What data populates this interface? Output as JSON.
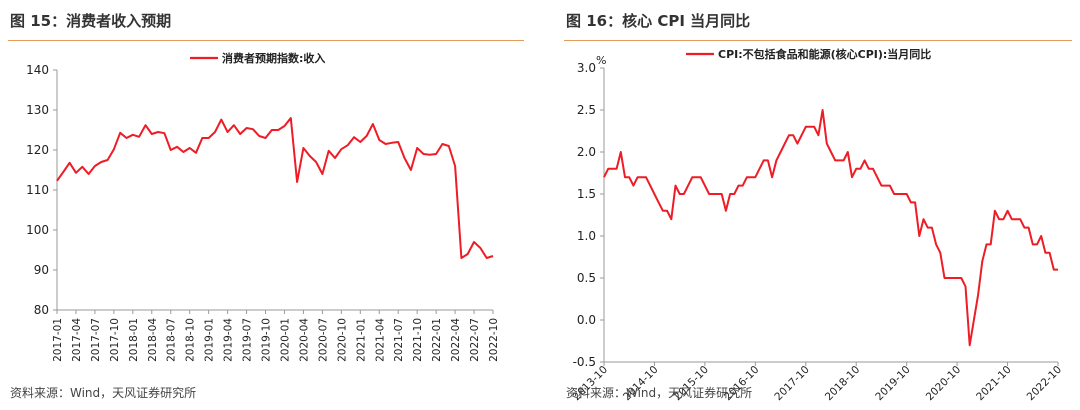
{
  "charts": [
    {
      "figure_title": "图 15：消费者收入预期",
      "source": "资料来源：Wind，天风证券研究所",
      "chart_data": {
        "type": "line",
        "title": "",
        "xlabel": "",
        "ylabel": "",
        "unit_label": "",
        "legend_position": "top-center",
        "grid": false,
        "ylim": [
          80,
          140
        ],
        "yticks": [
          "140",
          "130",
          "120",
          "110",
          "100",
          "90",
          "80"
        ],
        "xticks": [
          "2017-01",
          "2017-04",
          "2017-07",
          "2017-10",
          "2018-01",
          "2018-04",
          "2018-07",
          "2018-10",
          "2019-01",
          "2019-04",
          "2019-07",
          "2019-10",
          "2020-01",
          "2020-04",
          "2020-07",
          "2020-10",
          "2021-01",
          "2021-04",
          "2021-07",
          "2021-10",
          "2022-01",
          "2022-04",
          "2022-07",
          "2022-10"
        ],
        "x": [
          "2017-01",
          "2017-02",
          "2017-03",
          "2017-04",
          "2017-05",
          "2017-06",
          "2017-07",
          "2017-08",
          "2017-09",
          "2017-10",
          "2017-11",
          "2017-12",
          "2018-01",
          "2018-02",
          "2018-03",
          "2018-04",
          "2018-05",
          "2018-06",
          "2018-07",
          "2018-08",
          "2018-09",
          "2018-10",
          "2018-11",
          "2018-12",
          "2019-01",
          "2019-02",
          "2019-03",
          "2019-04",
          "2019-05",
          "2019-06",
          "2019-07",
          "2019-08",
          "2019-09",
          "2019-10",
          "2019-11",
          "2019-12",
          "2020-01",
          "2020-02",
          "2020-03",
          "2020-04",
          "2020-05",
          "2020-06",
          "2020-07",
          "2020-08",
          "2020-09",
          "2020-10",
          "2020-11",
          "2020-12",
          "2021-01",
          "2021-02",
          "2021-03",
          "2021-04",
          "2021-05",
          "2021-06",
          "2021-07",
          "2021-08",
          "2021-09",
          "2021-10",
          "2021-11",
          "2021-12",
          "2022-01",
          "2022-02",
          "2022-03",
          "2022-04",
          "2022-05",
          "2022-06",
          "2022-07",
          "2022-08",
          "2022-09",
          "2022-10"
        ],
        "series": [
          {
            "name": "消费者预期指数:收入",
            "color": "#ee1c25",
            "values": [
              112.3,
              114.5,
              116.8,
              114.3,
              115.8,
              114.0,
              116.0,
              117.0,
              117.5,
              120.2,
              124.3,
              123.0,
              123.8,
              123.3,
              126.2,
              124.0,
              124.5,
              124.2,
              120.0,
              120.8,
              119.5,
              120.5,
              119.3,
              123.0,
              123.0,
              124.5,
              127.6,
              124.5,
              126.2,
              124.0,
              125.5,
              125.2,
              123.5,
              123.0,
              125.0,
              125.0,
              126.0,
              128.0,
              112.0,
              120.5,
              118.5,
              117.0,
              114.0,
              119.8,
              118.0,
              120.2,
              121.2,
              123.2,
              122.0,
              123.5,
              126.5,
              122.5,
              121.5,
              121.8,
              122.0,
              118.0,
              115.0,
              120.5,
              119.0,
              118.8,
              119.0,
              121.5,
              121.0,
              116.0,
              93.0,
              94.0,
              97.0,
              95.5,
              93.0,
              93.5
            ]
          }
        ]
      }
    },
    {
      "figure_title": "图 16：核心 CPI 当月同比",
      "source": "资料来源：Wind，天风证券研究所",
      "chart_data": {
        "type": "line",
        "title": "",
        "xlabel": "",
        "ylabel": "",
        "unit_label": "%",
        "legend_position": "top-center",
        "grid": false,
        "ylim": [
          -0.5,
          3.0
        ],
        "yticks": [
          "3.0",
          "2.5",
          "2.0",
          "1.5",
          "1.0",
          "0.5",
          "0.0",
          "-0.5"
        ],
        "xticks": [
          "2013-10",
          "2014-10",
          "2015-10",
          "2016-10",
          "2017-10",
          "2018-10",
          "2019-10",
          "2020-10",
          "2021-10",
          "2022-10"
        ],
        "x": [
          "2013-10",
          "2013-11",
          "2013-12",
          "2014-01",
          "2014-02",
          "2014-03",
          "2014-04",
          "2014-05",
          "2014-06",
          "2014-07",
          "2014-08",
          "2014-09",
          "2014-10",
          "2014-11",
          "2014-12",
          "2015-01",
          "2015-02",
          "2015-03",
          "2015-04",
          "2015-05",
          "2015-06",
          "2015-07",
          "2015-08",
          "2015-09",
          "2015-10",
          "2015-11",
          "2015-12",
          "2016-01",
          "2016-02",
          "2016-03",
          "2016-04",
          "2016-05",
          "2016-06",
          "2016-07",
          "2016-08",
          "2016-09",
          "2016-10",
          "2016-11",
          "2016-12",
          "2017-01",
          "2017-02",
          "2017-03",
          "2017-04",
          "2017-05",
          "2017-06",
          "2017-07",
          "2017-08",
          "2017-09",
          "2017-10",
          "2017-11",
          "2017-12",
          "2018-01",
          "2018-02",
          "2018-03",
          "2018-04",
          "2018-05",
          "2018-06",
          "2018-07",
          "2018-08",
          "2018-09",
          "2018-10",
          "2018-11",
          "2018-12",
          "2019-01",
          "2019-02",
          "2019-03",
          "2019-04",
          "2019-05",
          "2019-06",
          "2019-07",
          "2019-08",
          "2019-09",
          "2019-10",
          "2019-11",
          "2019-12",
          "2020-01",
          "2020-02",
          "2020-03",
          "2020-04",
          "2020-05",
          "2020-06",
          "2020-07",
          "2020-08",
          "2020-09",
          "2020-10",
          "2020-11",
          "2020-12",
          "2021-01",
          "2021-02",
          "2021-03",
          "2021-04",
          "2021-05",
          "2021-06",
          "2021-07",
          "2021-08",
          "2021-09",
          "2021-10",
          "2021-11",
          "2021-12",
          "2022-01",
          "2022-02",
          "2022-03",
          "2022-04",
          "2022-05",
          "2022-06",
          "2022-07",
          "2022-08",
          "2022-09",
          "2022-10"
        ],
        "series": [
          {
            "name": "CPI:不包括食品和能源(核心CPI):当月同比",
            "color": "#ee1c25",
            "values": [
              1.7,
              1.8,
              1.8,
              1.8,
              2.0,
              1.7,
              1.7,
              1.6,
              1.7,
              1.7,
              1.7,
              1.6,
              1.5,
              1.4,
              1.3,
              1.3,
              1.2,
              1.6,
              1.5,
              1.5,
              1.6,
              1.7,
              1.7,
              1.7,
              1.6,
              1.5,
              1.5,
              1.5,
              1.5,
              1.3,
              1.5,
              1.5,
              1.6,
              1.6,
              1.7,
              1.7,
              1.7,
              1.8,
              1.9,
              1.9,
              1.7,
              1.9,
              2.0,
              2.1,
              2.2,
              2.2,
              2.1,
              2.2,
              2.3,
              2.3,
              2.3,
              2.2,
              2.5,
              2.1,
              2.0,
              1.9,
              1.9,
              1.9,
              2.0,
              1.7,
              1.8,
              1.8,
              1.9,
              1.8,
              1.8,
              1.7,
              1.6,
              1.6,
              1.6,
              1.5,
              1.5,
              1.5,
              1.5,
              1.4,
              1.4,
              1.0,
              1.2,
              1.1,
              1.1,
              0.9,
              0.8,
              0.5,
              0.5,
              0.5,
              0.5,
              0.5,
              0.4,
              -0.3,
              0.0,
              0.3,
              0.7,
              0.9,
              0.9,
              1.3,
              1.2,
              1.2,
              1.3,
              1.2,
              1.2,
              1.2,
              1.1,
              1.1,
              0.9,
              0.9,
              1.0,
              0.8,
              0.8,
              0.6,
              0.6
            ]
          }
        ]
      }
    }
  ]
}
